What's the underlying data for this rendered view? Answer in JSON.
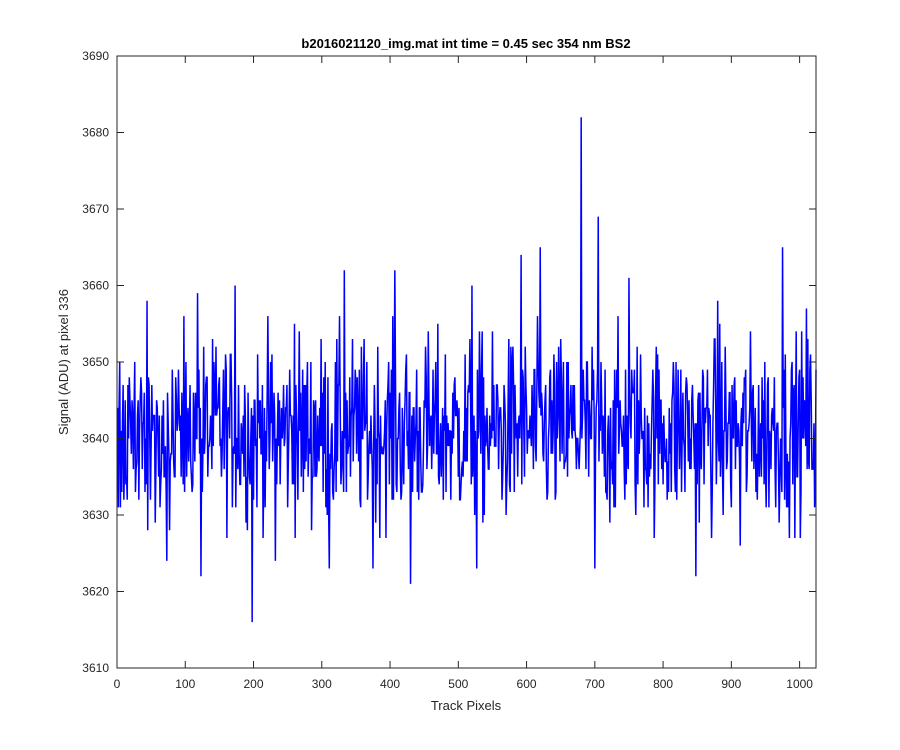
{
  "chart_data": {
    "type": "line",
    "title": "b2016021120_img.mat int time = 0.45 sec  354 nm BS2",
    "xlabel": "Track Pixels",
    "ylabel": "Signal (ADU) at pixel 336",
    "xlim": [
      0,
      1024
    ],
    "ylim": [
      3610,
      3690
    ],
    "xticks": [
      0,
      100,
      200,
      300,
      400,
      500,
      600,
      700,
      800,
      900,
      1000
    ],
    "yticks": [
      3610,
      3620,
      3630,
      3640,
      3650,
      3660,
      3670,
      3680,
      3690
    ],
    "grid": false,
    "series_color": "#0000ff",
    "series": [
      {
        "x_start": 1,
        "x_step": 1,
        "mean": 3641,
        "noise_amplitude": 6,
        "seed": 336,
        "peaks": [
          {
            "x": 680,
            "y": 3682
          },
          {
            "x": 705,
            "y": 3669
          },
          {
            "x": 620,
            "y": 3665
          },
          {
            "x": 592,
            "y": 3664
          },
          {
            "x": 975,
            "y": 3665
          },
          {
            "x": 333,
            "y": 3662
          },
          {
            "x": 407,
            "y": 3662
          },
          {
            "x": 750,
            "y": 3661
          },
          {
            "x": 173,
            "y": 3660
          },
          {
            "x": 44,
            "y": 3658
          },
          {
            "x": 118,
            "y": 3659
          },
          {
            "x": 260,
            "y": 3655
          },
          {
            "x": 520,
            "y": 3660
          },
          {
            "x": 880,
            "y": 3658
          },
          {
            "x": 1010,
            "y": 3657
          },
          {
            "x": 198,
            "y": 3616
          },
          {
            "x": 123,
            "y": 3622
          },
          {
            "x": 430,
            "y": 3621
          },
          {
            "x": 848,
            "y": 3622
          },
          {
            "x": 527,
            "y": 3623
          },
          {
            "x": 311,
            "y": 3623
          },
          {
            "x": 375,
            "y": 3623
          },
          {
            "x": 700,
            "y": 3623
          },
          {
            "x": 73,
            "y": 3624
          },
          {
            "x": 232,
            "y": 3624
          },
          {
            "x": 45,
            "y": 3628
          },
          {
            "x": 913,
            "y": 3626
          }
        ]
      }
    ]
  }
}
